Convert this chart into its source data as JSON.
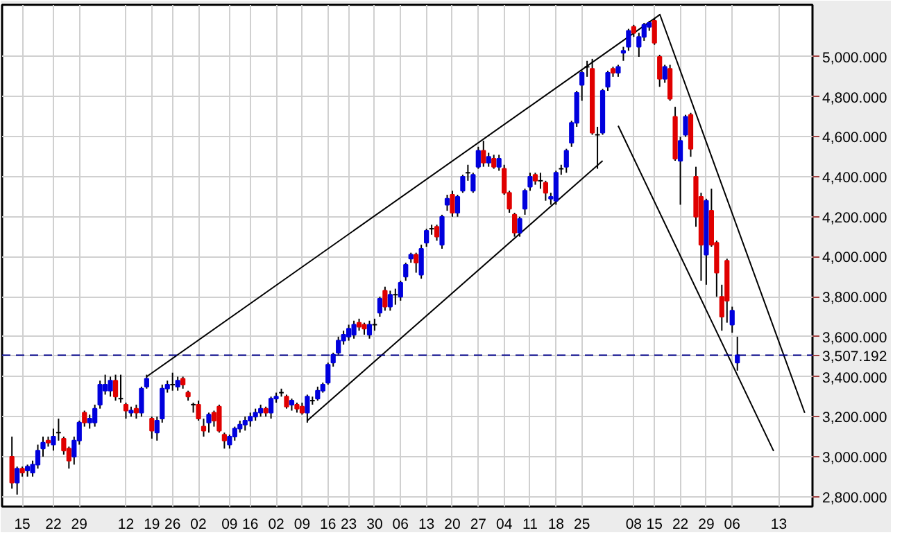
{
  "chart_data": {
    "type": "candlestick",
    "categories": [
      null,
      null,
      "15",
      null,
      null,
      null,
      null,
      null,
      "22",
      null,
      null,
      null,
      null,
      "29",
      null,
      null,
      null,
      null,
      null,
      null,
      null,
      null,
      "12",
      null,
      null,
      null,
      null,
      "19",
      null,
      null,
      null,
      "26",
      null,
      null,
      null,
      null,
      "02",
      null,
      null,
      null,
      null,
      null,
      "09",
      null,
      null,
      null,
      "16",
      null,
      null,
      null,
      null,
      "02",
      null,
      null,
      null,
      null,
      "09",
      null,
      null,
      null,
      null,
      "16",
      null,
      null,
      null,
      "23",
      null,
      null,
      null,
      null,
      "30",
      null,
      null,
      null,
      null,
      "06",
      null,
      null,
      null,
      null,
      "13",
      null,
      null,
      null,
      null,
      "20",
      null,
      null,
      null,
      null,
      "27",
      null,
      null,
      null,
      null,
      "04",
      null,
      null,
      null,
      null,
      "11",
      null,
      null,
      null,
      null,
      "18",
      null,
      null,
      null,
      null,
      "25",
      null,
      null,
      null,
      null,
      null,
      null,
      null,
      null,
      null,
      "08",
      null,
      null,
      null,
      "15",
      null,
      null,
      null,
      null,
      "22",
      null,
      null,
      null,
      null,
      "29",
      null,
      null,
      null,
      null,
      "06",
      null,
      null,
      null,
      null,
      null,
      null,
      null,
      null,
      "13",
      null,
      null,
      null,
      null,
      null,
      null
    ],
    "ohlc": [
      [
        3000,
        3100,
        2840,
        2870
      ],
      [
        2870,
        2950,
        2810,
        2940
      ],
      [
        2940,
        2950,
        2900,
        2920
      ],
      [
        2930,
        2960,
        2900,
        2950
      ],
      [
        2920,
        2980,
        2900,
        2960
      ],
      [
        2960,
        3060,
        2940,
        3030
      ],
      [
        3040,
        3100,
        3000,
        3070
      ],
      [
        3080,
        3100,
        3050,
        3070
      ],
      [
        3060,
        3140,
        3030,
        3100
      ],
      [
        3120,
        3190,
        3080,
        3120
      ],
      [
        3090,
        3100,
        3010,
        3030
      ],
      [
        3040,
        3050,
        2940,
        2980
      ],
      [
        3000,
        3100,
        2960,
        3080
      ],
      [
        3080,
        3180,
        3060,
        3170
      ],
      [
        3220,
        3230,
        3150,
        3170
      ],
      [
        3170,
        3210,
        3140,
        3190
      ],
      [
        3170,
        3260,
        3150,
        3240
      ],
      [
        3260,
        3380,
        3240,
        3360
      ],
      [
        3330,
        3410,
        3310,
        3360
      ],
      [
        3330,
        3400,
        3300,
        3380
      ],
      [
        3380,
        3410,
        3280,
        3300
      ],
      [
        3290,
        3410,
        3270,
        3290
      ],
      [
        3260,
        3270,
        3190,
        3230
      ],
      [
        3220,
        3250,
        3200,
        3230
      ],
      [
        3240,
        3260,
        3190,
        3220
      ],
      [
        3220,
        3350,
        3200,
        3340
      ],
      [
        3350,
        3410,
        3340,
        3390
      ],
      [
        3190,
        3200,
        3090,
        3130
      ],
      [
        3120,
        3200,
        3080,
        3180
      ],
      [
        3190,
        3360,
        3170,
        3340
      ],
      [
        3340,
        3380,
        3320,
        3360
      ],
      [
        3360,
        3420,
        3330,
        3360
      ],
      [
        3350,
        3400,
        3330,
        3380
      ],
      [
        3390,
        3400,
        3340,
        3360
      ],
      [
        3320,
        3330,
        3280,
        3300
      ],
      [
        3260,
        3270,
        3220,
        3260
      ],
      [
        3260,
        3280,
        3180,
        3190
      ],
      [
        3150,
        3190,
        3100,
        3130
      ],
      [
        3170,
        3220,
        3120,
        3210
      ],
      [
        3220,
        3230,
        3150,
        3180
      ],
      [
        3250,
        3260,
        3120,
        3130
      ],
      [
        3110,
        3120,
        3040,
        3080
      ],
      [
        3060,
        3110,
        3040,
        3100
      ],
      [
        3100,
        3150,
        3080,
        3140
      ],
      [
        3140,
        3180,
        3120,
        3160
      ],
      [
        3160,
        3200,
        3130,
        3180
      ],
      [
        3180,
        3220,
        3150,
        3200
      ],
      [
        3200,
        3240,
        3180,
        3220
      ],
      [
        3220,
        3260,
        3200,
        3240
      ],
      [
        3240,
        3250,
        3200,
        3220
      ],
      [
        3220,
        3300,
        3190,
        3290
      ],
      [
        3290,
        3320,
        3270,
        3300
      ],
      [
        3320,
        3340,
        3300,
        3320
      ],
      [
        3300,
        3310,
        3240,
        3250
      ],
      [
        3260,
        3290,
        3230,
        3280
      ],
      [
        3260,
        3270,
        3220,
        3240
      ],
      [
        3250,
        3270,
        3210,
        3220
      ],
      [
        3220,
        3310,
        3170,
        3300
      ],
      [
        3280,
        3300,
        3260,
        3280
      ],
      [
        3290,
        3350,
        3280,
        3330
      ],
      [
        3330,
        3370,
        3320,
        3360
      ],
      [
        3370,
        3470,
        3360,
        3460
      ],
      [
        3470,
        3520,
        3450,
        3510
      ],
      [
        3520,
        3600,
        3510,
        3580
      ],
      [
        3580,
        3630,
        3560,
        3610
      ],
      [
        3600,
        3660,
        3580,
        3640
      ],
      [
        3610,
        3680,
        3590,
        3660
      ],
      [
        3670,
        3690,
        3630,
        3650
      ],
      [
        3660,
        3670,
        3610,
        3640
      ],
      [
        3610,
        3680,
        3590,
        3660
      ],
      [
        3660,
        3690,
        3630,
        3660
      ],
      [
        3720,
        3800,
        3700,
        3790
      ],
      [
        3830,
        3850,
        3730,
        3750
      ],
      [
        3750,
        3830,
        3730,
        3810
      ],
      [
        3810,
        3840,
        3760,
        3810
      ],
      [
        3800,
        3880,
        3780,
        3870
      ],
      [
        3900,
        3970,
        3880,
        3960
      ],
      [
        3990,
        4020,
        3970,
        4010
      ],
      [
        4010,
        4020,
        3920,
        3970
      ],
      [
        3910,
        4060,
        3890,
        4040
      ],
      [
        4070,
        4140,
        4050,
        4130
      ],
      [
        4140,
        4160,
        4110,
        4140
      ],
      [
        4150,
        4160,
        4080,
        4100
      ],
      [
        4060,
        4210,
        4040,
        4200
      ],
      [
        4260,
        4310,
        4230,
        4290
      ],
      [
        4310,
        4330,
        4200,
        4220
      ],
      [
        4220,
        4310,
        4200,
        4300
      ],
      [
        4330,
        4410,
        4320,
        4400
      ],
      [
        4420,
        4460,
        4380,
        4420
      ],
      [
        4330,
        4420,
        4320,
        4410
      ],
      [
        4450,
        4550,
        4440,
        4530
      ],
      [
        4530,
        4580,
        4450,
        4470
      ],
      [
        4470,
        4520,
        4450,
        4500
      ],
      [
        4490,
        4510,
        4440,
        4450
      ],
      [
        4450,
        4510,
        4430,
        4490
      ],
      [
        4440,
        4460,
        4310,
        4320
      ],
      [
        4320,
        4330,
        4220,
        4240
      ],
      [
        4210,
        4220,
        4100,
        4120
      ],
      [
        4120,
        4200,
        4100,
        4190
      ],
      [
        4240,
        4340,
        4210,
        4330
      ],
      [
        4350,
        4420,
        4330,
        4400
      ],
      [
        4410,
        4420,
        4360,
        4380
      ],
      [
        4380,
        4420,
        4340,
        4380
      ],
      [
        4370,
        4380,
        4280,
        4320
      ],
      [
        4290,
        4320,
        4260,
        4300
      ],
      [
        4280,
        4430,
        4260,
        4420
      ],
      [
        4440,
        4460,
        4410,
        4440
      ],
      [
        4450,
        4540,
        4420,
        4530
      ],
      [
        4570,
        4680,
        4550,
        4670
      ],
      [
        4670,
        4830,
        4650,
        4820
      ],
      [
        4860,
        4930,
        4780,
        4920
      ],
      [
        4950,
        4980,
        4900,
        4950
      ],
      [
        4940,
        4990,
        4610,
        4620
      ],
      [
        4610,
        4650,
        4440,
        4610
      ],
      [
        4620,
        4840,
        4610,
        4830
      ],
      [
        4850,
        4930,
        4830,
        4920
      ],
      [
        4940,
        4950,
        4900,
        4920
      ],
      [
        4920,
        4960,
        4900,
        4950
      ],
      [
        5020,
        5050,
        4980,
        5030
      ],
      [
        5050,
        5140,
        5030,
        5130
      ],
      [
        5150,
        5160,
        5100,
        5120
      ],
      [
        5050,
        5120,
        5000,
        5100
      ],
      [
        5100,
        5170,
        5080,
        5160
      ],
      [
        5150,
        5180,
        5130,
        5170
      ],
      [
        5180,
        5190,
        5060,
        5070
      ],
      [
        5000,
        5010,
        4850,
        4890
      ],
      [
        4890,
        4960,
        4870,
        4950
      ],
      [
        4940,
        4960,
        4780,
        4790
      ],
      [
        4700,
        4750,
        4480,
        4490
      ],
      [
        4480,
        4600,
        4260,
        4580
      ],
      [
        4610,
        4710,
        4600,
        4700
      ],
      [
        4710,
        4720,
        4500,
        4540
      ],
      [
        4400,
        4450,
        4150,
        4200
      ],
      [
        4300,
        4320,
        3880,
        4060
      ],
      [
        4010,
        4290,
        3860,
        4280
      ],
      [
        4230,
        4340,
        4050,
        4060
      ],
      [
        4070,
        4080,
        3800,
        3920
      ],
      [
        3800,
        3860,
        3630,
        3700
      ],
      [
        3980,
        3990,
        3670,
        3780
      ],
      [
        3660,
        3750,
        3620,
        3730
      ],
      [
        3470,
        3600,
        3430,
        3507.192
      ],
      null,
      null,
      null,
      null,
      null,
      null,
      null,
      null,
      null,
      null,
      null,
      null,
      null,
      null
    ],
    "colors": [
      "#e00000",
      "#0000dd",
      "#e00000",
      "#0000dd",
      "#0000dd",
      "#0000dd",
      "#0000dd",
      "#e00000",
      "#0000dd",
      "#000000",
      "#e00000",
      "#e00000",
      "#0000dd",
      "#0000dd",
      "#e00000",
      "#0000dd",
      "#0000dd",
      "#0000dd",
      "#0000dd",
      "#0000dd",
      "#e00000",
      "#000000",
      "#e00000",
      "#0000dd",
      "#e00000",
      "#0000dd",
      "#0000dd",
      "#e00000",
      "#0000dd",
      "#0000dd",
      "#0000dd",
      "#000000",
      "#0000dd",
      "#e00000",
      "#e00000",
      "#000000",
      "#e00000",
      "#e00000",
      "#0000dd",
      "#e00000",
      "#e00000",
      "#e00000",
      "#0000dd",
      "#0000dd",
      "#0000dd",
      "#0000dd",
      "#0000dd",
      "#0000dd",
      "#0000dd",
      "#e00000",
      "#0000dd",
      "#0000dd",
      "#000000",
      "#e00000",
      "#0000dd",
      "#e00000",
      "#e00000",
      "#0000dd",
      "#000000",
      "#0000dd",
      "#0000dd",
      "#0000dd",
      "#0000dd",
      "#0000dd",
      "#0000dd",
      "#0000dd",
      "#0000dd",
      "#e00000",
      "#e00000",
      "#0000dd",
      "#000000",
      "#0000dd",
      "#e00000",
      "#0000dd",
      "#000000",
      "#0000dd",
      "#0000dd",
      "#0000dd",
      "#e00000",
      "#0000dd",
      "#0000dd",
      "#000000",
      "#e00000",
      "#0000dd",
      "#0000dd",
      "#e00000",
      "#0000dd",
      "#0000dd",
      "#000000",
      "#0000dd",
      "#0000dd",
      "#e00000",
      "#0000dd",
      "#e00000",
      "#0000dd",
      "#e00000",
      "#e00000",
      "#e00000",
      "#0000dd",
      "#0000dd",
      "#0000dd",
      "#e00000",
      "#000000",
      "#e00000",
      "#0000dd",
      "#0000dd",
      "#000000",
      "#0000dd",
      "#0000dd",
      "#0000dd",
      "#0000dd",
      "#000000",
      "#e00000",
      "#000000",
      "#0000dd",
      "#0000dd",
      "#e00000",
      "#0000dd",
      "#0000dd",
      "#0000dd",
      "#e00000",
      "#0000dd",
      "#0000dd",
      "#0000dd",
      "#e00000",
      "#e00000",
      "#0000dd",
      "#e00000",
      "#e00000",
      "#0000dd",
      "#0000dd",
      "#e00000",
      "#e00000",
      "#e00000",
      "#0000dd",
      "#e00000",
      "#e00000",
      "#e00000",
      "#e00000",
      "#0000dd",
      "#0000dd",
      null,
      null,
      null,
      null,
      null,
      null,
      null,
      null,
      null,
      null,
      null,
      null,
      null,
      null
    ],
    "series": [
      {
        "type": "line",
        "color": "#000000",
        "values": [
          null,
          null,
          null,
          null,
          null,
          null,
          null,
          null,
          null,
          null,
          null,
          null,
          null,
          null,
          null,
          null,
          null,
          null,
          null,
          null,
          null,
          null,
          null,
          null,
          null,
          null,
          3400,
          null,
          null,
          null,
          null,
          null,
          null,
          null,
          null,
          null,
          null,
          null,
          null,
          null,
          null,
          null,
          null,
          null,
          null,
          null,
          null,
          null,
          null,
          null,
          null,
          null,
          null,
          null,
          null,
          null,
          null,
          null,
          null,
          null,
          null,
          null,
          null,
          null,
          null,
          null,
          null,
          null,
          null,
          null,
          null,
          null,
          null,
          null,
          null,
          null,
          null,
          null,
          null,
          null,
          null,
          null,
          null,
          null,
          null,
          null,
          null,
          null,
          null,
          null,
          null,
          null,
          null,
          null,
          null,
          null,
          null,
          null,
          null,
          null,
          null,
          null,
          null,
          null,
          null,
          null,
          null,
          null,
          null,
          null,
          null,
          null,
          null,
          null,
          null,
          null,
          null,
          null,
          null,
          null,
          null,
          null,
          null,
          null,
          null,
          5210,
          null,
          null,
          null,
          null,
          null,
          null,
          null,
          null,
          null,
          null,
          null,
          null,
          null,
          null,
          null,
          null,
          null,
          null,
          null,
          null,
          null,
          null,
          null,
          null,
          null,
          null,
          null,
          null,
          null
        ]
      },
      {
        "type": "line",
        "color": "#000000",
        "values": [
          null,
          null,
          null,
          null,
          null,
          null,
          null,
          null,
          null,
          null,
          null,
          null,
          null,
          null,
          null,
          null,
          null,
          null,
          null,
          null,
          null,
          null,
          null,
          null,
          null,
          null,
          null,
          null,
          null,
          null,
          null,
          null,
          null,
          null,
          null,
          null,
          null,
          null,
          null,
          null,
          null,
          null,
          null,
          null,
          null,
          null,
          null,
          null,
          null,
          null,
          null,
          null,
          null,
          null,
          null,
          null,
          null,
          3180,
          null,
          null,
          null,
          null,
          null,
          null,
          null,
          null,
          null,
          null,
          null,
          null,
          null,
          null,
          null,
          null,
          null,
          null,
          null,
          null,
          null,
          null,
          null,
          null,
          null,
          null,
          null,
          null,
          null,
          null,
          null,
          null,
          null,
          null,
          null,
          null,
          null,
          null,
          null,
          null,
          null,
          null,
          null,
          null,
          null,
          null,
          null,
          null,
          null,
          null,
          null,
          null,
          null,
          null,
          null,
          null,
          4480,
          null,
          null,
          null,
          null,
          null,
          null,
          null,
          null,
          null,
          null,
          null,
          null,
          null,
          null,
          null,
          null,
          null,
          null,
          null,
          null,
          null,
          null,
          null,
          null,
          null,
          null,
          null,
          null,
          null,
          null,
          null,
          null,
          null,
          null,
          null,
          null,
          null,
          null,
          null,
          null
        ]
      },
      {
        "type": "line",
        "color": "#000000",
        "values": [
          null,
          null,
          null,
          null,
          null,
          null,
          null,
          null,
          null,
          null,
          null,
          null,
          null,
          null,
          null,
          null,
          null,
          null,
          null,
          null,
          null,
          null,
          null,
          null,
          null,
          null,
          null,
          null,
          null,
          null,
          null,
          null,
          null,
          null,
          null,
          null,
          null,
          null,
          null,
          null,
          null,
          null,
          null,
          null,
          null,
          null,
          null,
          null,
          null,
          null,
          null,
          null,
          null,
          null,
          null,
          null,
          null,
          null,
          null,
          null,
          null,
          null,
          null,
          null,
          null,
          null,
          null,
          null,
          null,
          null,
          null,
          null,
          null,
          null,
          null,
          null,
          null,
          null,
          null,
          null,
          null,
          null,
          null,
          null,
          null,
          null,
          null,
          null,
          null,
          null,
          null,
          null,
          null,
          null,
          null,
          null,
          null,
          null,
          null,
          null,
          null,
          null,
          null,
          null,
          null,
          null,
          null,
          null,
          null,
          null,
          null,
          null,
          null,
          null,
          null,
          null,
          null,
          null,
          null,
          null,
          null,
          null,
          null,
          null,
          null,
          5215,
          null,
          null,
          null,
          null,
          null,
          null,
          null,
          null,
          null,
          null,
          null,
          null,
          null,
          null,
          null,
          null,
          null,
          null,
          null,
          null,
          null,
          null,
          null,
          null,
          null,
          null,
          null,
          3219,
          null
        ]
      },
      {
        "type": "line",
        "color": "#000000",
        "values": [
          null,
          null,
          null,
          null,
          null,
          null,
          null,
          null,
          null,
          null,
          null,
          null,
          null,
          null,
          null,
          null,
          null,
          null,
          null,
          null,
          null,
          null,
          null,
          null,
          null,
          null,
          null,
          null,
          null,
          null,
          null,
          null,
          null,
          null,
          null,
          null,
          null,
          null,
          null,
          null,
          null,
          null,
          null,
          null,
          null,
          null,
          null,
          null,
          null,
          null,
          null,
          null,
          null,
          null,
          null,
          null,
          null,
          null,
          null,
          null,
          null,
          null,
          null,
          null,
          null,
          null,
          null,
          null,
          null,
          null,
          null,
          null,
          null,
          null,
          null,
          null,
          null,
          null,
          null,
          null,
          null,
          null,
          null,
          null,
          null,
          null,
          null,
          null,
          null,
          null,
          null,
          null,
          null,
          null,
          null,
          null,
          null,
          null,
          null,
          null,
          null,
          null,
          null,
          null,
          null,
          null,
          null,
          null,
          null,
          null,
          null,
          null,
          null,
          null,
          null,
          null,
          null,
          4655,
          null,
          null,
          null,
          null,
          null,
          null,
          null,
          null,
          null,
          null,
          null,
          null,
          null,
          null,
          null,
          null,
          null,
          null,
          null,
          null,
          null,
          null,
          null,
          null,
          null,
          null,
          null,
          null,
          null,
          3028,
          null,
          null,
          null,
          null,
          null,
          null,
          null
        ]
      }
    ],
    "ylim": [
      2750,
      5260
    ],
    "yticks": [
      {
        "value": 2800,
        "label": "2,800.000"
      },
      {
        "value": 3000,
        "label": "3,000.000"
      },
      {
        "value": 3200,
        "label": "3,200.000"
      },
      {
        "value": 3400,
        "label": "3,400.000"
      },
      {
        "value": 3600,
        "label": "3,600.000"
      },
      {
        "value": 3800,
        "label": "3,800.000"
      },
      {
        "value": 4000,
        "label": "4,000.000"
      },
      {
        "value": 4200,
        "label": "4,200.000"
      },
      {
        "value": 4400,
        "label": "4,400.000"
      },
      {
        "value": 4600,
        "label": "4,600.000"
      },
      {
        "value": 4800,
        "label": "4,800.000"
      },
      {
        "value": 5000,
        "label": "5,000.000"
      }
    ],
    "ref_lines": [
      {
        "axis": "y",
        "value": 3507.192,
        "label": "3,507.192",
        "color": "#00008b",
        "line_style": "dashed"
      }
    ],
    "grid": true
  }
}
